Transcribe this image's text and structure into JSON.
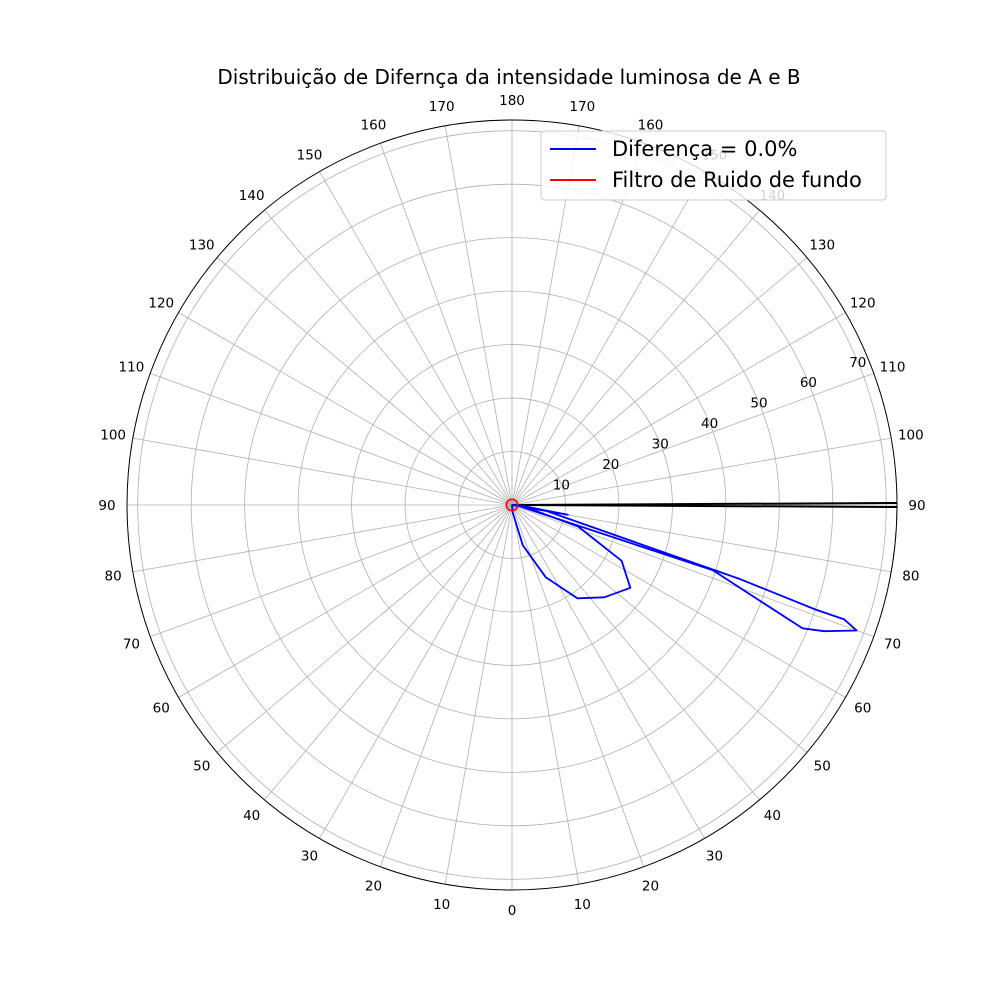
{
  "chart_data": {
    "type": "polar-line",
    "title": "Distribuição de Difernça da intensidade luminosa de A e B",
    "r_ticks": [
      "10",
      "20",
      "30",
      "40",
      "50",
      "60",
      "70"
    ],
    "r_max": 72,
    "angle_labels_right": [
      "0",
      "10",
      "20",
      "30",
      "40",
      "50",
      "60",
      "70",
      "80",
      "90",
      "100",
      "110",
      "120",
      "130",
      "140",
      "150",
      "160",
      "170",
      "180"
    ],
    "angle_labels_left": [
      "10",
      "20",
      "30",
      "40",
      "50",
      "60",
      "70",
      "80",
      "90",
      "100",
      "110",
      "120",
      "130",
      "140",
      "150",
      "160",
      "170"
    ],
    "grid": true,
    "legend_position": "upper-right",
    "series": [
      {
        "name": "Diferença = 0.0%",
        "color": "#0000ff",
        "points": [
          {
            "angle": 90,
            "r": 0
          },
          {
            "angle": 80,
            "r": 10.6
          },
          {
            "angle": 86,
            "r": 1.8
          },
          {
            "angle": 72,
            "r": 13
          },
          {
            "angle": 63,
            "r": 23
          },
          {
            "angle": 55,
            "r": 27
          },
          {
            "angle": 45,
            "r": 24.4
          },
          {
            "angle": 35,
            "r": 21.3
          },
          {
            "angle": 25,
            "r": 14.9
          },
          {
            "angle": 15,
            "r": 7.8
          },
          {
            "angle": 5,
            "r": 1.4
          },
          {
            "angle": 0,
            "r": 0
          },
          {
            "angle": 87,
            "r": 0.8
          },
          {
            "angle": 72,
            "r": 39.5
          },
          {
            "angle": 67,
            "r": 59
          },
          {
            "angle": 68,
            "r": 63
          },
          {
            "angle": 70,
            "r": 68.6
          },
          {
            "angle": 71,
            "r": 65.7
          },
          {
            "angle": 71,
            "r": 60
          },
          {
            "angle": 72,
            "r": 45
          },
          {
            "angle": 80,
            "r": 6.6
          },
          {
            "angle": 86,
            "r": 1.4
          },
          {
            "angle": 90,
            "r": 0
          }
        ]
      },
      {
        "name": "Filtro de Ruido de fundo",
        "color": "#ff0000",
        "constant_r": 0.5
      }
    ],
    "highlight_lines": {
      "color": "#000000",
      "angles": [
        89.7,
        90.3
      ]
    }
  }
}
